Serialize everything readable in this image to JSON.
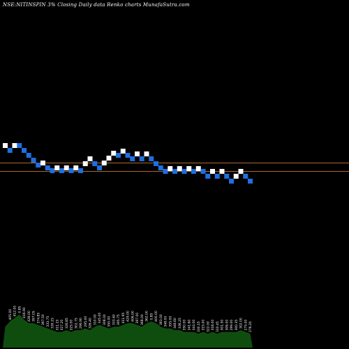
{
  "chart_data": {
    "type": "renko",
    "title": "NSE:NITINSPIN 3% Closing Daily data Renko charts MunafaSutra.com",
    "grid": false,
    "colors": {
      "up": "#ffffff",
      "down": "#1e6fe0",
      "reference_line": "#b06a2a",
      "volume": "#0f4d0f",
      "background": "#000000"
    },
    "reference_lines": [
      233,
      245
    ],
    "bricks": [
      {
        "x": 0,
        "y": 205,
        "dir": "up"
      },
      {
        "x": 1,
        "y": 212,
        "dir": "down"
      },
      {
        "x": 2,
        "y": 205,
        "dir": "up"
      },
      {
        "x": 3,
        "y": 205,
        "dir": "down"
      },
      {
        "x": 4,
        "y": 212,
        "dir": "down"
      },
      {
        "x": 5,
        "y": 219,
        "dir": "down"
      },
      {
        "x": 6,
        "y": 226,
        "dir": "down"
      },
      {
        "x": 7,
        "y": 233,
        "dir": "down"
      },
      {
        "x": 8,
        "y": 230,
        "dir": "up"
      },
      {
        "x": 9,
        "y": 237,
        "dir": "down"
      },
      {
        "x": 10,
        "y": 241,
        "dir": "down"
      },
      {
        "x": 11,
        "y": 237,
        "dir": "up"
      },
      {
        "x": 12,
        "y": 241,
        "dir": "down"
      },
      {
        "x": 13,
        "y": 237,
        "dir": "up"
      },
      {
        "x": 14,
        "y": 241,
        "dir": "down"
      },
      {
        "x": 15,
        "y": 237,
        "dir": "up"
      },
      {
        "x": 16,
        "y": 241,
        "dir": "down"
      },
      {
        "x": 17,
        "y": 231,
        "dir": "up"
      },
      {
        "x": 18,
        "y": 224,
        "dir": "up"
      },
      {
        "x": 19,
        "y": 231,
        "dir": "down"
      },
      {
        "x": 20,
        "y": 237,
        "dir": "down"
      },
      {
        "x": 21,
        "y": 230,
        "dir": "up"
      },
      {
        "x": 22,
        "y": 223,
        "dir": "up"
      },
      {
        "x": 23,
        "y": 216,
        "dir": "up"
      },
      {
        "x": 24,
        "y": 219,
        "dir": "down"
      },
      {
        "x": 25,
        "y": 213,
        "dir": "up"
      },
      {
        "x": 26,
        "y": 219,
        "dir": "down"
      },
      {
        "x": 27,
        "y": 224,
        "dir": "down"
      },
      {
        "x": 28,
        "y": 217,
        "dir": "up"
      },
      {
        "x": 29,
        "y": 224,
        "dir": "down"
      },
      {
        "x": 30,
        "y": 217,
        "dir": "up"
      },
      {
        "x": 31,
        "y": 224,
        "dir": "down"
      },
      {
        "x": 32,
        "y": 231,
        "dir": "down"
      },
      {
        "x": 33,
        "y": 237,
        "dir": "down"
      },
      {
        "x": 34,
        "y": 242,
        "dir": "down"
      },
      {
        "x": 35,
        "y": 238,
        "dir": "up"
      },
      {
        "x": 36,
        "y": 242,
        "dir": "down"
      },
      {
        "x": 37,
        "y": 238,
        "dir": "up"
      },
      {
        "x": 38,
        "y": 242,
        "dir": "down"
      },
      {
        "x": 39,
        "y": 238,
        "dir": "up"
      },
      {
        "x": 40,
        "y": 242,
        "dir": "down"
      },
      {
        "x": 41,
        "y": 238,
        "dir": "up"
      },
      {
        "x": 42,
        "y": 242,
        "dir": "down"
      },
      {
        "x": 43,
        "y": 249,
        "dir": "down"
      },
      {
        "x": 44,
        "y": 242,
        "dir": "up"
      },
      {
        "x": 45,
        "y": 249,
        "dir": "down"
      },
      {
        "x": 46,
        "y": 242,
        "dir": "up"
      },
      {
        "x": 47,
        "y": 249,
        "dir": "down"
      },
      {
        "x": 48,
        "y": 256,
        "dir": "down"
      },
      {
        "x": 49,
        "y": 249,
        "dir": "up"
      },
      {
        "x": 50,
        "y": 242,
        "dir": "up"
      },
      {
        "x": 51,
        "y": 249,
        "dir": "down"
      },
      {
        "x": 52,
        "y": 256,
        "dir": "down"
      }
    ],
    "volume": [
      {
        "x": 0,
        "v": 0.6,
        "label": ""
      },
      {
        "x": 1,
        "v": 0.75,
        "label": "405.00"
      },
      {
        "x": 2,
        "v": 0.85,
        "label": "412.00"
      },
      {
        "x": 3,
        "v": 0.95,
        "label": "0.85"
      },
      {
        "x": 4,
        "v": 0.8,
        "label": "416.90"
      },
      {
        "x": 5,
        "v": 0.7,
        "label": "428.00"
      },
      {
        "x": 6,
        "v": 0.7,
        "label": "397.05"
      },
      {
        "x": 7,
        "v": 0.65,
        "label": "374.85"
      },
      {
        "x": 8,
        "v": 0.6,
        "label": "367.50"
      },
      {
        "x": 9,
        "v": 0.55,
        "label": "333.75"
      },
      {
        "x": 10,
        "v": 0.5,
        "label": "339.15"
      },
      {
        "x": 11,
        "v": 0.45,
        "label": "311.15"
      },
      {
        "x": 12,
        "v": 0.45,
        "label": "327.20"
      },
      {
        "x": 13,
        "v": 0.5,
        "label": "326.85"
      },
      {
        "x": 14,
        "v": 0.45,
        "label": "325.00"
      },
      {
        "x": 15,
        "v": 0.5,
        "label": "302.75"
      },
      {
        "x": 16,
        "v": 0.5,
        "label": "296.90"
      },
      {
        "x": 17,
        "v": 0.55,
        "label": "295.00"
      },
      {
        "x": 18,
        "v": 0.5,
        "label": "326.40"
      },
      {
        "x": 19,
        "v": 0.6,
        "label": "310.00"
      },
      {
        "x": 20,
        "v": 0.65,
        "label": "345.00"
      },
      {
        "x": 21,
        "v": 0.6,
        "label": "308.00"
      },
      {
        "x": 22,
        "v": 0.55,
        "label": "350.00"
      },
      {
        "x": 23,
        "v": 0.6,
        "label": "333.40"
      },
      {
        "x": 24,
        "v": 0.6,
        "label": "395.75"
      },
      {
        "x": 25,
        "v": 0.65,
        "label": "411.95"
      },
      {
        "x": 26,
        "v": 0.7,
        "label": "429.00"
      },
      {
        "x": 27,
        "v": 0.7,
        "label": "406.00"
      },
      {
        "x": 28,
        "v": 0.65,
        "label": "397.00"
      },
      {
        "x": 29,
        "v": 0.6,
        "label": "368.00"
      },
      {
        "x": 30,
        "v": 0.7,
        "label": "362.00"
      },
      {
        "x": 31,
        "v": 0.75,
        "label": "0.85"
      },
      {
        "x": 32,
        "v": 0.7,
        "label": "400.00"
      },
      {
        "x": 33,
        "v": 0.6,
        "label": "383.00"
      },
      {
        "x": 34,
        "v": 0.55,
        "label": "348.00"
      },
      {
        "x": 35,
        "v": 0.55,
        "label": "355.00"
      },
      {
        "x": 36,
        "v": 0.5,
        "label": "348.60"
      },
      {
        "x": 37,
        "v": 0.5,
        "label": "336.25"
      },
      {
        "x": 38,
        "v": 0.45,
        "label": "350.00"
      },
      {
        "x": 39,
        "v": 0.45,
        "label": "341.60"
      },
      {
        "x": 40,
        "v": 0.45,
        "label": "344.00"
      },
      {
        "x": 41,
        "v": 0.4,
        "label": "330.15"
      },
      {
        "x": 42,
        "v": 0.45,
        "label": "315.00"
      },
      {
        "x": 43,
        "v": 0.4,
        "label": "322.00"
      },
      {
        "x": 44,
        "v": 0.45,
        "label": "318.00"
      },
      {
        "x": 45,
        "v": 0.4,
        "label": "310.45"
      },
      {
        "x": 46,
        "v": 0.45,
        "label": "301.50"
      },
      {
        "x": 47,
        "v": 0.45,
        "label": "306.00"
      },
      {
        "x": 48,
        "v": 0.45,
        "label": "299.00"
      },
      {
        "x": 49,
        "v": 0.45,
        "label": "300.35"
      },
      {
        "x": 50,
        "v": 0.5,
        "label": "302.00"
      },
      {
        "x": 51,
        "v": 0.45,
        "label": "275.00"
      },
      {
        "x": 52,
        "v": 0.4,
        "label": "276.20"
      }
    ]
  }
}
